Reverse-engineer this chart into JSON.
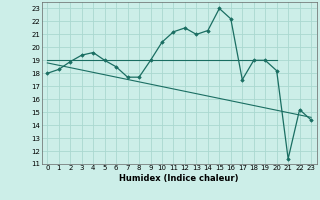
{
  "title": "",
  "xlabel": "Humidex (Indice chaleur)",
  "ylabel": "",
  "bg_color": "#cceee8",
  "grid_color": "#aad8d0",
  "line_color": "#1a6e62",
  "marker_color": "#1a6e62",
  "xlim": [
    -0.5,
    23.5
  ],
  "ylim": [
    11,
    23.5
  ],
  "xticks": [
    0,
    1,
    2,
    3,
    4,
    5,
    6,
    7,
    8,
    9,
    10,
    11,
    12,
    13,
    14,
    15,
    16,
    17,
    18,
    19,
    20,
    21,
    22,
    23
  ],
  "yticks": [
    11,
    12,
    13,
    14,
    15,
    16,
    17,
    18,
    19,
    20,
    21,
    22,
    23
  ],
  "series": [
    [
      0,
      18.0
    ],
    [
      1,
      18.3
    ],
    [
      2,
      18.9
    ],
    [
      3,
      19.4
    ],
    [
      4,
      19.6
    ],
    [
      5,
      19.0
    ],
    [
      6,
      18.5
    ],
    [
      7,
      17.7
    ],
    [
      8,
      17.7
    ],
    [
      9,
      19.0
    ],
    [
      10,
      20.4
    ],
    [
      11,
      21.2
    ],
    [
      12,
      21.5
    ],
    [
      13,
      21.0
    ],
    [
      14,
      21.3
    ],
    [
      15,
      23.0
    ],
    [
      16,
      22.2
    ],
    [
      17,
      17.5
    ],
    [
      18,
      19.0
    ],
    [
      19,
      19.0
    ],
    [
      20,
      18.2
    ],
    [
      21,
      11.4
    ],
    [
      22,
      15.2
    ],
    [
      23,
      14.4
    ]
  ],
  "straight_line": [
    [
      0,
      18.8
    ],
    [
      23,
      14.6
    ]
  ],
  "horiz_line": [
    [
      0,
      19.0
    ],
    [
      20,
      19.0
    ]
  ]
}
